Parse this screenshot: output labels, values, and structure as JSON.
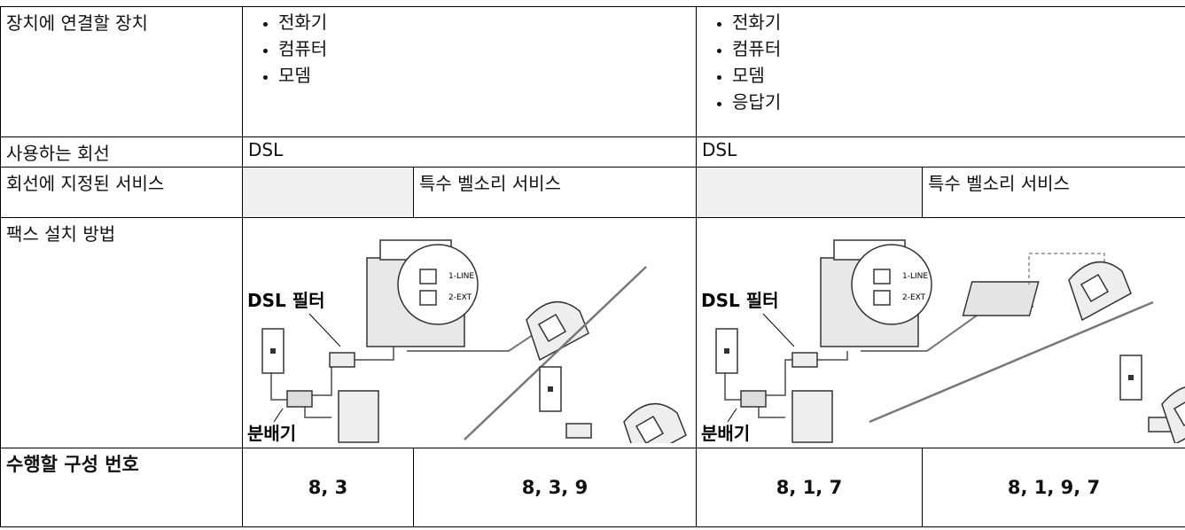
{
  "table": {
    "devices": {
      "label": "장치에 연결할 장치",
      "left": [
        "전화기",
        "컴퓨터",
        "모뎀"
      ],
      "right": [
        "전화기",
        "컴퓨터",
        "모뎀",
        "응답기"
      ]
    },
    "line": {
      "label": "사용하는 회선",
      "left": "DSL",
      "right": "DSL"
    },
    "service": {
      "label": "회선에 지정된 서비스",
      "left": "특수 벨소리 서비스",
      "right": "특수 벨소리 서비스"
    },
    "setup": {
      "label": "팩스 설치 방법",
      "diagrams": [
        {
          "filter": "DSL 필터",
          "splitter": "분배기",
          "port1": "1-LINE",
          "port2": "2-EXT"
        },
        {
          "filter": "DSL 필터",
          "splitter": "분배기",
          "port1": "1-LINE",
          "port2": "2-EXT"
        }
      ]
    },
    "configs": {
      "label": "수행할 구성 번호",
      "values": [
        "8, 3",
        "8, 3, 9",
        "8, 1, 7",
        "8, 1, 9, 7"
      ]
    }
  }
}
